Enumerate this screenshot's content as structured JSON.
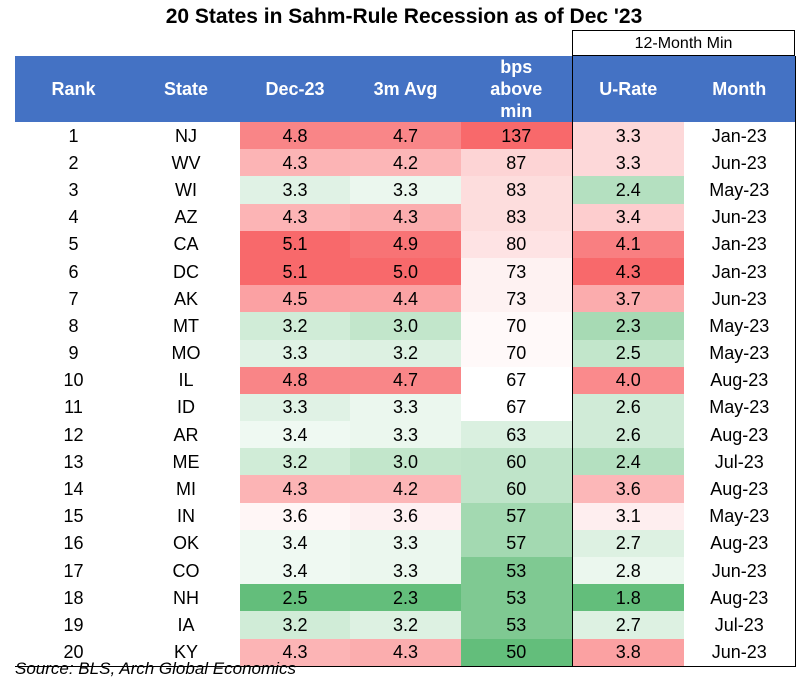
{
  "title": "20 States in Sahm-Rule Recession as of Dec '23",
  "group_header": "12-Month Min",
  "columns": [
    "Rank",
    "State",
    "Dec-23",
    "3m Avg",
    "bps above min",
    "U-Rate",
    "Month"
  ],
  "source": "Source: BLS, Arch Global Economics",
  "colors": {
    "header_bg": "#4472c4",
    "header_text": "#ffffff",
    "high": "#f8696b",
    "mid": "#ffffff",
    "low": "#63be7b"
  },
  "chart_data": {
    "type": "table",
    "columns": [
      "Rank",
      "State",
      "Dec-23",
      "3m Avg",
      "bps above min",
      "U-Rate",
      "Month"
    ],
    "rows": [
      [
        "1",
        "NJ",
        "4.8",
        "4.7",
        "137",
        "3.3",
        "Jan-23"
      ],
      [
        "2",
        "WV",
        "4.3",
        "4.2",
        "87",
        "3.3",
        "Jun-23"
      ],
      [
        "3",
        "WI",
        "3.3",
        "3.3",
        "83",
        "2.4",
        "May-23"
      ],
      [
        "4",
        "AZ",
        "4.3",
        "4.3",
        "83",
        "3.4",
        "Jun-23"
      ],
      [
        "5",
        "CA",
        "5.1",
        "4.9",
        "80",
        "4.1",
        "Jan-23"
      ],
      [
        "6",
        "DC",
        "5.1",
        "5.0",
        "73",
        "4.3",
        "Jan-23"
      ],
      [
        "7",
        "AK",
        "4.5",
        "4.4",
        "73",
        "3.7",
        "Jun-23"
      ],
      [
        "8",
        "MT",
        "3.2",
        "3.0",
        "70",
        "2.3",
        "May-23"
      ],
      [
        "9",
        "MO",
        "3.3",
        "3.2",
        "70",
        "2.5",
        "May-23"
      ],
      [
        "10",
        "IL",
        "4.8",
        "4.7",
        "67",
        "4.0",
        "Aug-23"
      ],
      [
        "11",
        "ID",
        "3.3",
        "3.3",
        "67",
        "2.6",
        "May-23"
      ],
      [
        "12",
        "AR",
        "3.4",
        "3.3",
        "63",
        "2.6",
        "Aug-23"
      ],
      [
        "13",
        "ME",
        "3.2",
        "3.0",
        "60",
        "2.4",
        "Jul-23"
      ],
      [
        "14",
        "MI",
        "4.3",
        "4.2",
        "60",
        "3.6",
        "Aug-23"
      ],
      [
        "15",
        "IN",
        "3.6",
        "3.6",
        "57",
        "3.1",
        "May-23"
      ],
      [
        "16",
        "OK",
        "3.4",
        "3.3",
        "57",
        "2.7",
        "Aug-23"
      ],
      [
        "17",
        "CO",
        "3.4",
        "3.3",
        "53",
        "2.8",
        "Jun-23"
      ],
      [
        "18",
        "NH",
        "2.5",
        "2.3",
        "53",
        "1.8",
        "Aug-23"
      ],
      [
        "19",
        "IA",
        "3.2",
        "3.2",
        "53",
        "2.7",
        "Jul-23"
      ],
      [
        "20",
        "KY",
        "4.3",
        "4.3",
        "50",
        "3.8",
        "Jun-23"
      ]
    ],
    "heatmap_columns": [
      2,
      3,
      4,
      5
    ]
  }
}
